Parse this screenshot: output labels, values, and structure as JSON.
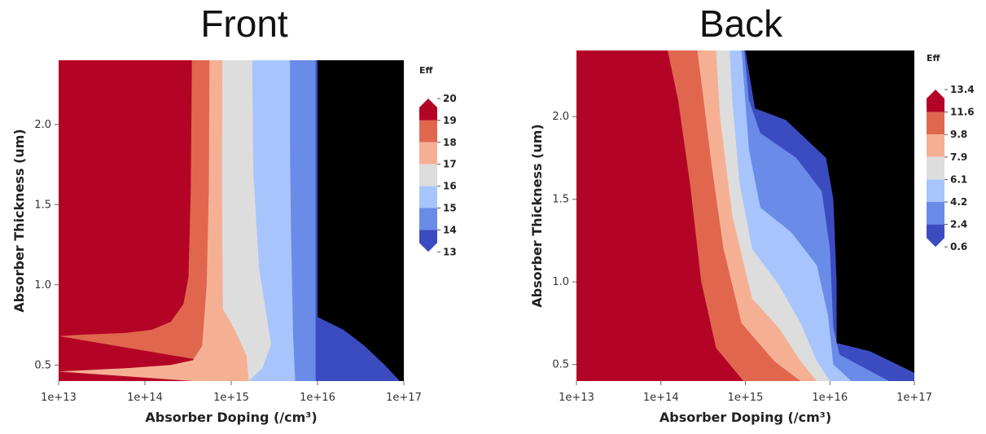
{
  "chart_data": [
    {
      "type": "contour",
      "title": "Front",
      "xlabel": "Absorber Doping (/cm³)",
      "ylabel": "Absorber Thickness (um)",
      "x_scale": "log",
      "xlim": [
        10000000000000.0,
        1e+17
      ],
      "ylim": [
        0.4,
        2.4
      ],
      "x_ticks": [
        "1e+13",
        "1e+14",
        "1e+15",
        "1e+16",
        "1e+17"
      ],
      "y_ticks": [
        "0.5",
        "1.0",
        "1.5",
        "2.0"
      ],
      "y_tick_values": [
        0.5,
        1.0,
        1.5,
        2.0
      ],
      "colorbar_title": "Eff",
      "colorbar_levels": [
        "13",
        "14",
        "15",
        "16",
        "17",
        "18",
        "19",
        "20"
      ],
      "colorbar_colors": [
        "#3b4cc0",
        "#6a8be8",
        "#a7c5fc",
        "#dddddd",
        "#f5b094",
        "#e0674e",
        "#b40426"
      ],
      "contour_boundaries": [
        {
          "level": 19,
          "points": [
            [
              10000000000000.0,
              0.68
            ],
            [
              20000000000000.0,
              0.69
            ],
            [
              60000000000000.0,
              0.7
            ],
            [
              120000000000000.0,
              0.72
            ],
            [
              200000000000000.0,
              0.77
            ],
            [
              280000000000000.0,
              0.88
            ],
            [
              320000000000000.0,
              1.05
            ],
            [
              340000000000000.0,
              1.6
            ],
            [
              350000000000000.0,
              2.4
            ]
          ]
        },
        {
          "level": 18,
          "points": [
            [
              10000000000000.0,
              0.46
            ],
            [
              60000000000000.0,
              0.48
            ],
            [
              200000000000000.0,
              0.5
            ],
            [
              360000000000000.0,
              0.53
            ],
            [
              460000000000000.0,
              0.62
            ],
            [
              520000000000000.0,
              1.0
            ],
            [
              550000000000000.0,
              1.6
            ],
            [
              560000000000000.0,
              2.4
            ]
          ]
        },
        {
          "level": 17,
          "points": [
            [
              10000000000000.0,
              0.4
            ],
            [
              1600000000000000.0,
              0.4
            ],
            [
              1500000000000000.0,
              0.56
            ],
            [
              1100000000000000.0,
              0.72
            ],
            [
              800000000000000.0,
              0.85
            ],
            [
              780000000000000.0,
              1.6
            ],
            [
              790000000000000.0,
              2.4
            ]
          ]
        },
        {
          "level": 16,
          "points": [
            [
              1600000000000000.0,
              0.4
            ],
            [
              2300000000000000.0,
              0.48
            ],
            [
              2900000000000000.0,
              0.63
            ],
            [
              2100000000000000.0,
              1.1
            ],
            [
              1800000000000000.0,
              1.7
            ],
            [
              1750000000000000.0,
              2.4
            ]
          ]
        },
        {
          "level": 15,
          "points": [
            [
              5500000000000000.0,
              0.4
            ],
            [
              5200000000000000.0,
              0.7
            ],
            [
              4900000000000000.0,
              1.4
            ],
            [
              4800000000000000.0,
              1.9
            ],
            [
              4800000000000000.0,
              2.4
            ]
          ]
        },
        {
          "level": 14,
          "points": [
            [
              9500000000000000.0,
              0.4
            ],
            [
              9500000000000000.0,
              2.4
            ]
          ]
        },
        {
          "level": 13,
          "points": [
            [
              9e+16,
              0.4
            ],
            [
              6e+16,
              0.5
            ],
            [
              3.5e+16,
              0.62
            ],
            [
              2e+16,
              0.72
            ],
            [
              1e+16,
              0.8
            ],
            [
              1e+16,
              2.4
            ]
          ]
        }
      ]
    },
    {
      "type": "contour",
      "title": "Back",
      "xlabel": "Absorber Doping (/cm³)",
      "ylabel": "Absorber Thickness (um)",
      "x_scale": "log",
      "xlim": [
        10000000000000.0,
        1e+17
      ],
      "ylim": [
        0.4,
        2.4
      ],
      "x_ticks": [
        "1e+13",
        "1e+14",
        "1e+15",
        "1e+16",
        "1e+17"
      ],
      "y_ticks": [
        "0.5",
        "1.0",
        "1.5",
        "2.0"
      ],
      "y_tick_values": [
        0.5,
        1.0,
        1.5,
        2.0
      ],
      "colorbar_title": "Eff",
      "colorbar_levels": [
        "0.6",
        "2.4",
        "4.2",
        "6.1",
        "7.9",
        "9.8",
        "11.6",
        "13.4"
      ],
      "colorbar_colors": [
        "#3b4cc0",
        "#6a8be8",
        "#a7c5fc",
        "#dddddd",
        "#f5b094",
        "#e0674e",
        "#b40426"
      ],
      "contour_boundaries": [
        {
          "level": 11.6,
          "points": [
            [
              950000000000000.0,
              0.4
            ],
            [
              450000000000000.0,
              0.6
            ],
            [
              300000000000000.0,
              1.0
            ],
            [
              220000000000000.0,
              1.6
            ],
            [
              160000000000000.0,
              2.1
            ],
            [
              120000000000000.0,
              2.4
            ]
          ]
        },
        {
          "level": 9.8,
          "points": [
            [
              4500000000000000.0,
              0.4
            ],
            [
              2200000000000000.0,
              0.52
            ],
            [
              900000000000000.0,
              0.75
            ],
            [
              550000000000000.0,
              1.2
            ],
            [
              400000000000000.0,
              1.7
            ],
            [
              320000000000000.0,
              2.1
            ],
            [
              270000000000000.0,
              2.4
            ]
          ]
        },
        {
          "level": 7.9,
          "points": [
            [
              7000000000000000.0,
              0.4
            ],
            [
              4500000000000000.0,
              0.52
            ],
            [
              2500000000000000.0,
              0.72
            ],
            [
              1200000000000000.0,
              0.9
            ],
            [
              700000000000000.0,
              1.4
            ],
            [
              500000000000000.0,
              2.0
            ],
            [
              450000000000000.0,
              2.4
            ]
          ]
        },
        {
          "level": 6.1,
          "points": [
            [
              1e+16,
              0.4
            ],
            [
              7000000000000000.0,
              0.52
            ],
            [
              4500000000000000.0,
              0.75
            ],
            [
              2500000000000000.0,
              0.98
            ],
            [
              1200000000000000.0,
              1.2
            ],
            [
              850000000000000.0,
              1.6
            ],
            [
              700000000000000.0,
              2.1
            ],
            [
              650000000000000.0,
              2.4
            ]
          ]
        },
        {
          "level": 4.2,
          "points": [
            [
              1.8e+16,
              0.4
            ],
            [
              1.1e+16,
              0.5
            ],
            [
              9500000000000000.0,
              0.8
            ],
            [
              7000000000000000.0,
              1.1
            ],
            [
              3500000000000000.0,
              1.3
            ],
            [
              1500000000000000.0,
              1.45
            ],
            [
              1100000000000000.0,
              1.8
            ],
            [
              900000000000000.0,
              2.4
            ]
          ]
        },
        {
          "level": 2.4,
          "points": [
            [
              5e+16,
              0.4
            ],
            [
              1.3e+16,
              0.56
            ],
            [
              1.1e+16,
              0.72
            ],
            [
              1e+16,
              1.2
            ],
            [
              8000000000000000.0,
              1.55
            ],
            [
              4000000000000000.0,
              1.75
            ],
            [
              1500000000000000.0,
              1.9
            ],
            [
              1100000000000000.0,
              2.1
            ],
            [
              970000000000000.0,
              2.4
            ]
          ]
        },
        {
          "level": 0.6,
          "points": [
            [
              1e+17,
              0.45
            ],
            [
              3e+16,
              0.58
            ],
            [
              1.2e+16,
              0.63
            ],
            [
              1.2e+16,
              1.0
            ],
            [
              1.1e+16,
              1.5
            ],
            [
              9000000000000000.0,
              1.75
            ],
            [
              3000000000000000.0,
              1.98
            ],
            [
              1300000000000000.0,
              2.05
            ],
            [
              1000000000000000.0,
              2.4
            ]
          ]
        }
      ]
    }
  ]
}
